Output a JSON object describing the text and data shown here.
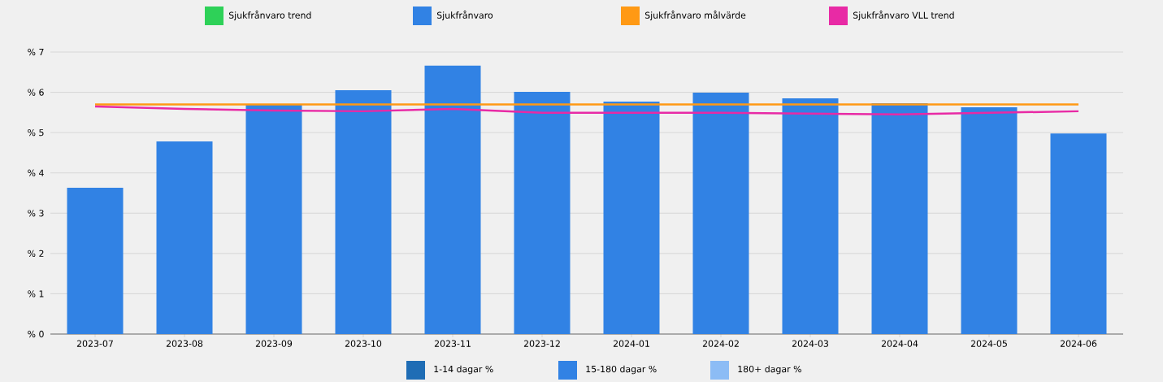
{
  "chart_data": {
    "type": "bar",
    "categories": [
      "2023-07",
      "2023-08",
      "2023-09",
      "2023-10",
      "2023-11",
      "2023-12",
      "2024-01",
      "2024-02",
      "2024-03",
      "2024-04",
      "2024-05",
      "2024-06"
    ],
    "series": [
      {
        "name": "Sjukfrånvaro trend",
        "type": "line",
        "color": "#2ed158",
        "values": [
          null,
          null,
          null,
          null,
          null,
          null,
          null,
          null,
          null,
          null,
          null,
          null
        ]
      },
      {
        "name": "Sjukfrånvaro",
        "color": "#3182e4",
        "values": [
          3.63,
          4.78,
          5.69,
          6.05,
          6.66,
          6.01,
          5.77,
          5.99,
          5.85,
          5.73,
          5.63,
          4.98
        ]
      },
      {
        "name": "Sjukfrånvaro målvärde",
        "type": "line",
        "color": "#ff9914",
        "values": [
          5.7,
          5.7,
          5.7,
          5.7,
          5.7,
          5.7,
          5.7,
          5.7,
          5.7,
          5.7,
          5.7,
          5.7
        ]
      },
      {
        "name": "Sjukfrånvaro VLL trend",
        "type": "line",
        "color": "#e82aa5",
        "values": [
          5.65,
          5.59,
          5.55,
          5.53,
          5.59,
          5.49,
          5.49,
          5.49,
          5.47,
          5.45,
          5.49,
          5.53
        ]
      },
      {
        "name": "1-14 dagar %",
        "type": "bar",
        "color": "#1f6db5",
        "values": [
          null,
          null,
          null,
          null,
          null,
          null,
          null,
          null,
          null,
          null,
          null,
          null
        ]
      },
      {
        "name": "15-180 dagar %",
        "type": "bar",
        "color": "#3182e4",
        "values": [
          null,
          null,
          null,
          null,
          null,
          null,
          null,
          null,
          null,
          null,
          null,
          null
        ]
      },
      {
        "name": "180+ dagar %",
        "type": "bar",
        "color": "#8cbcf5",
        "values": [
          null,
          null,
          null,
          null,
          null,
          null,
          null,
          null,
          null,
          null,
          null,
          null
        ]
      }
    ],
    "ylim": [
      0,
      7
    ],
    "yticks": [
      {
        "value": 0,
        "label": "% 0"
      },
      {
        "value": 1,
        "label": "% 1"
      },
      {
        "value": 2,
        "label": "% 2"
      },
      {
        "value": 3,
        "label": "% 3"
      },
      {
        "value": 4,
        "label": "% 4"
      },
      {
        "value": 5,
        "label": "% 5"
      },
      {
        "value": 6,
        "label": "% 6"
      },
      {
        "value": 7,
        "label": "% 7"
      }
    ],
    "grid": "y",
    "legend": "top"
  }
}
